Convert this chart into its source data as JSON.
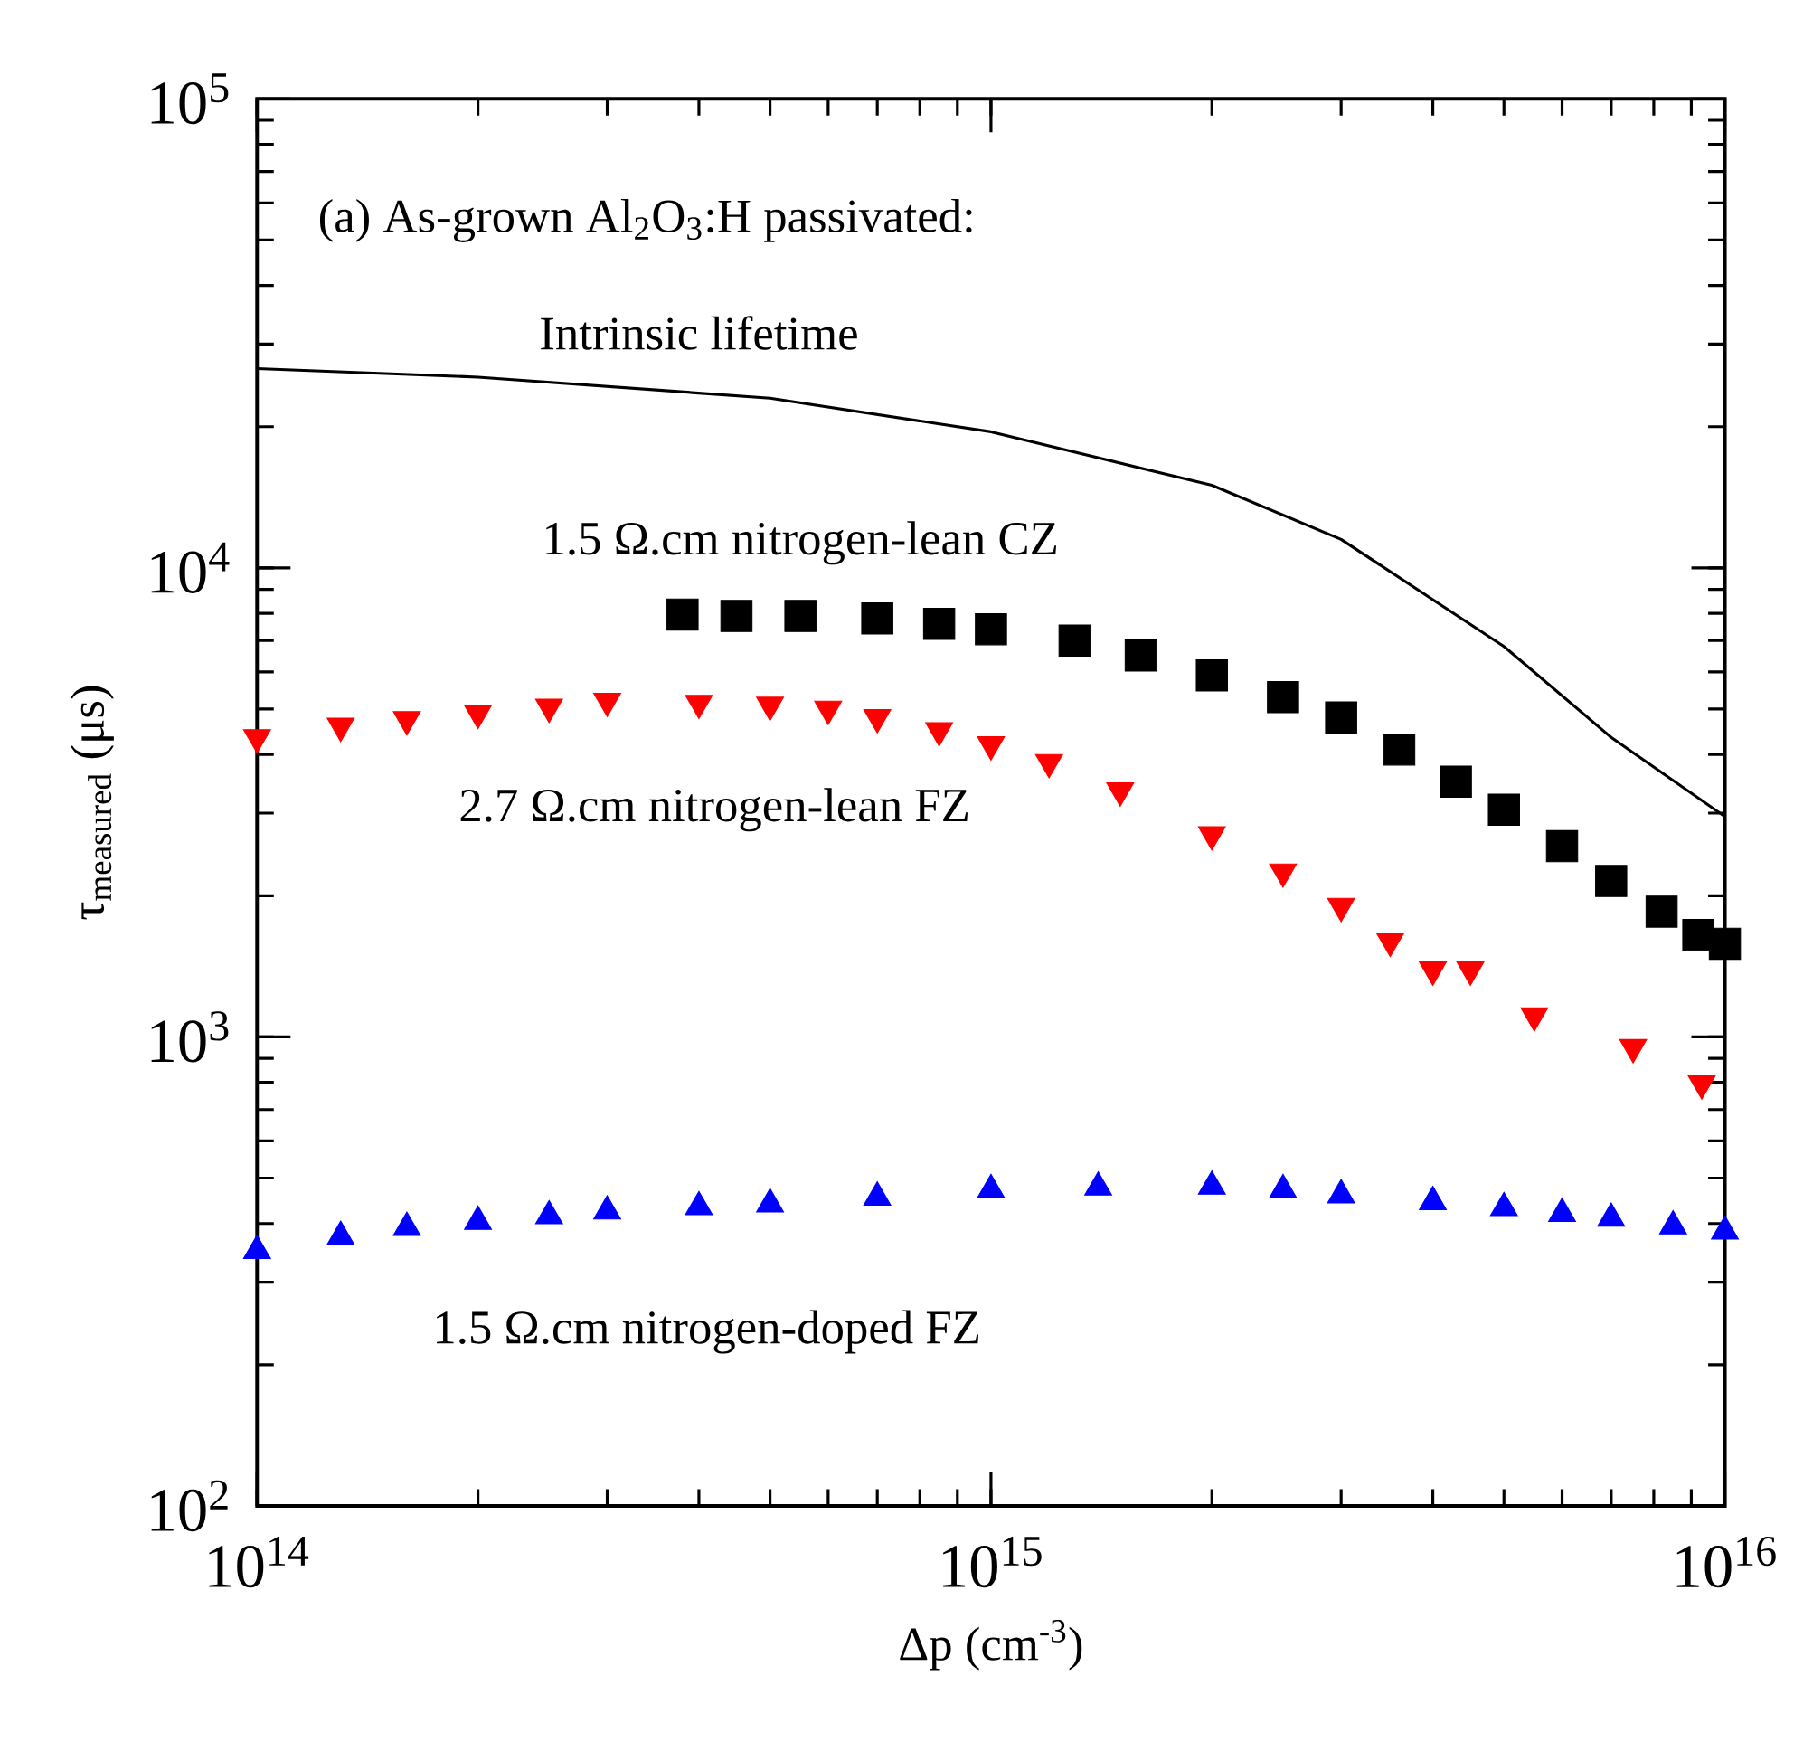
{
  "chart_data": {
    "type": "scatter",
    "xlabel": "Δp (cm$^{-3}$)",
    "ylabel": "τ$_{measured}$ (μs)",
    "annotations": [
      "(a) As-grown Al$_{2}$O$_{3}$:H passivated:"
    ],
    "log": "xy",
    "xlim": [
      100000000000000.0,
      1e+16
    ],
    "ylim": [
      100,
      100000
    ],
    "xticks": [
      {
        "value": 100000000000000.0,
        "label": "10$^{14}$"
      },
      {
        "value": 1000000000000000.0,
        "label": "10$^{15}$"
      },
      {
        "value": 1e+16,
        "label": "10$^{16}$"
      }
    ],
    "yticks": [
      {
        "value": 100,
        "label": "10$^{2}$"
      },
      {
        "value": 1000,
        "label": "10$^{3}$"
      },
      {
        "value": 10000,
        "label": "10$^{4}$"
      },
      {
        "value": 100000,
        "label": "10$^{5}$"
      }
    ],
    "grid": false,
    "series": [
      {
        "name": "Intrinsic lifetime",
        "type": "line",
        "marker": "none",
        "color": "#000000",
        "x": [
          100000000000000.0,
          200000000000000.0,
          500000000000000.0,
          1000000000000000.0,
          2000000000000000.0,
          3000000000000000.0,
          5000000000000000.0,
          7000000000000000.0,
          1e+16
        ],
        "values": [
          26600,
          25500,
          23000,
          19500,
          15000,
          11500,
          6800,
          4350,
          2950
        ]
      },
      {
        "name": "1.5 Ω.cm nitrogen-lean CZ",
        "marker": "square",
        "color": "#000000",
        "x": [
          380000000000000.0,
          450000000000000.0,
          550000000000000.0,
          700000000000000.0,
          850000000000000.0,
          1000000000000000.0,
          1300000000000000.0,
          1600000000000000.0,
          2000000000000000.0,
          2500000000000000.0,
          3000000000000000.0,
          3600000000000000.0,
          4300000000000000.0,
          5000000000000000.0,
          6000000000000000.0,
          7000000000000000.0,
          8200000000000000.0,
          9200000000000000.0,
          1e+16
        ],
        "values": [
          7950,
          7900,
          7900,
          7800,
          7600,
          7400,
          7000,
          6500,
          5900,
          5300,
          4800,
          4100,
          3500,
          3050,
          2550,
          2150,
          1850,
          1650,
          1580
        ]
      },
      {
        "name": "2.7 Ω.cm nitrogen-lean FZ",
        "marker": "triangle",
        "color": "#ff0000",
        "x": [
          100000000000000.0,
          130000000000000.0,
          160000000000000.0,
          200000000000000.0,
          250000000000000.0,
          300000000000000.0,
          400000000000000.0,
          500000000000000.0,
          600000000000000.0,
          700000000000000.0,
          850000000000000.0,
          1000000000000000.0,
          1200000000000000.0,
          1500000000000000.0,
          2000000000000000.0,
          2500000000000000.0,
          3000000000000000.0,
          3500000000000000.0,
          4000000000000000.0,
          4500000000000000.0,
          5500000000000000.0,
          7500000000000000.0,
          9300000000000000.0
        ],
        "values": [
          4350,
          4600,
          4750,
          4900,
          5050,
          5200,
          5150,
          5100,
          5000,
          4800,
          4500,
          4200,
          3850,
          3350,
          2700,
          2250,
          1900,
          1600,
          1390,
          1390,
          1110,
          950,
          795
        ]
      },
      {
        "name": "1.5 Ω.cm nitrogen-doped FZ",
        "marker": "triangle",
        "color": "#0000ff",
        "x": [
          100000000000000.0,
          130000000000000.0,
          160000000000000.0,
          200000000000000.0,
          250000000000000.0,
          300000000000000.0,
          400000000000000.0,
          500000000000000.0,
          700000000000000.0,
          1000000000000000.0,
          1400000000000000.0,
          2000000000000000.0,
          2500000000000000.0,
          3000000000000000.0,
          4000000000000000.0,
          5000000000000000.0,
          6000000000000000.0,
          7000000000000000.0,
          8500000000000000.0,
          1e+16
        ],
        "values": [
          350,
          375,
          392,
          404,
          415,
          425,
          434,
          440,
          455,
          472,
          478,
          480,
          472,
          460,
          445,
          432,
          420,
          410,
          395,
          385
        ]
      }
    ]
  }
}
